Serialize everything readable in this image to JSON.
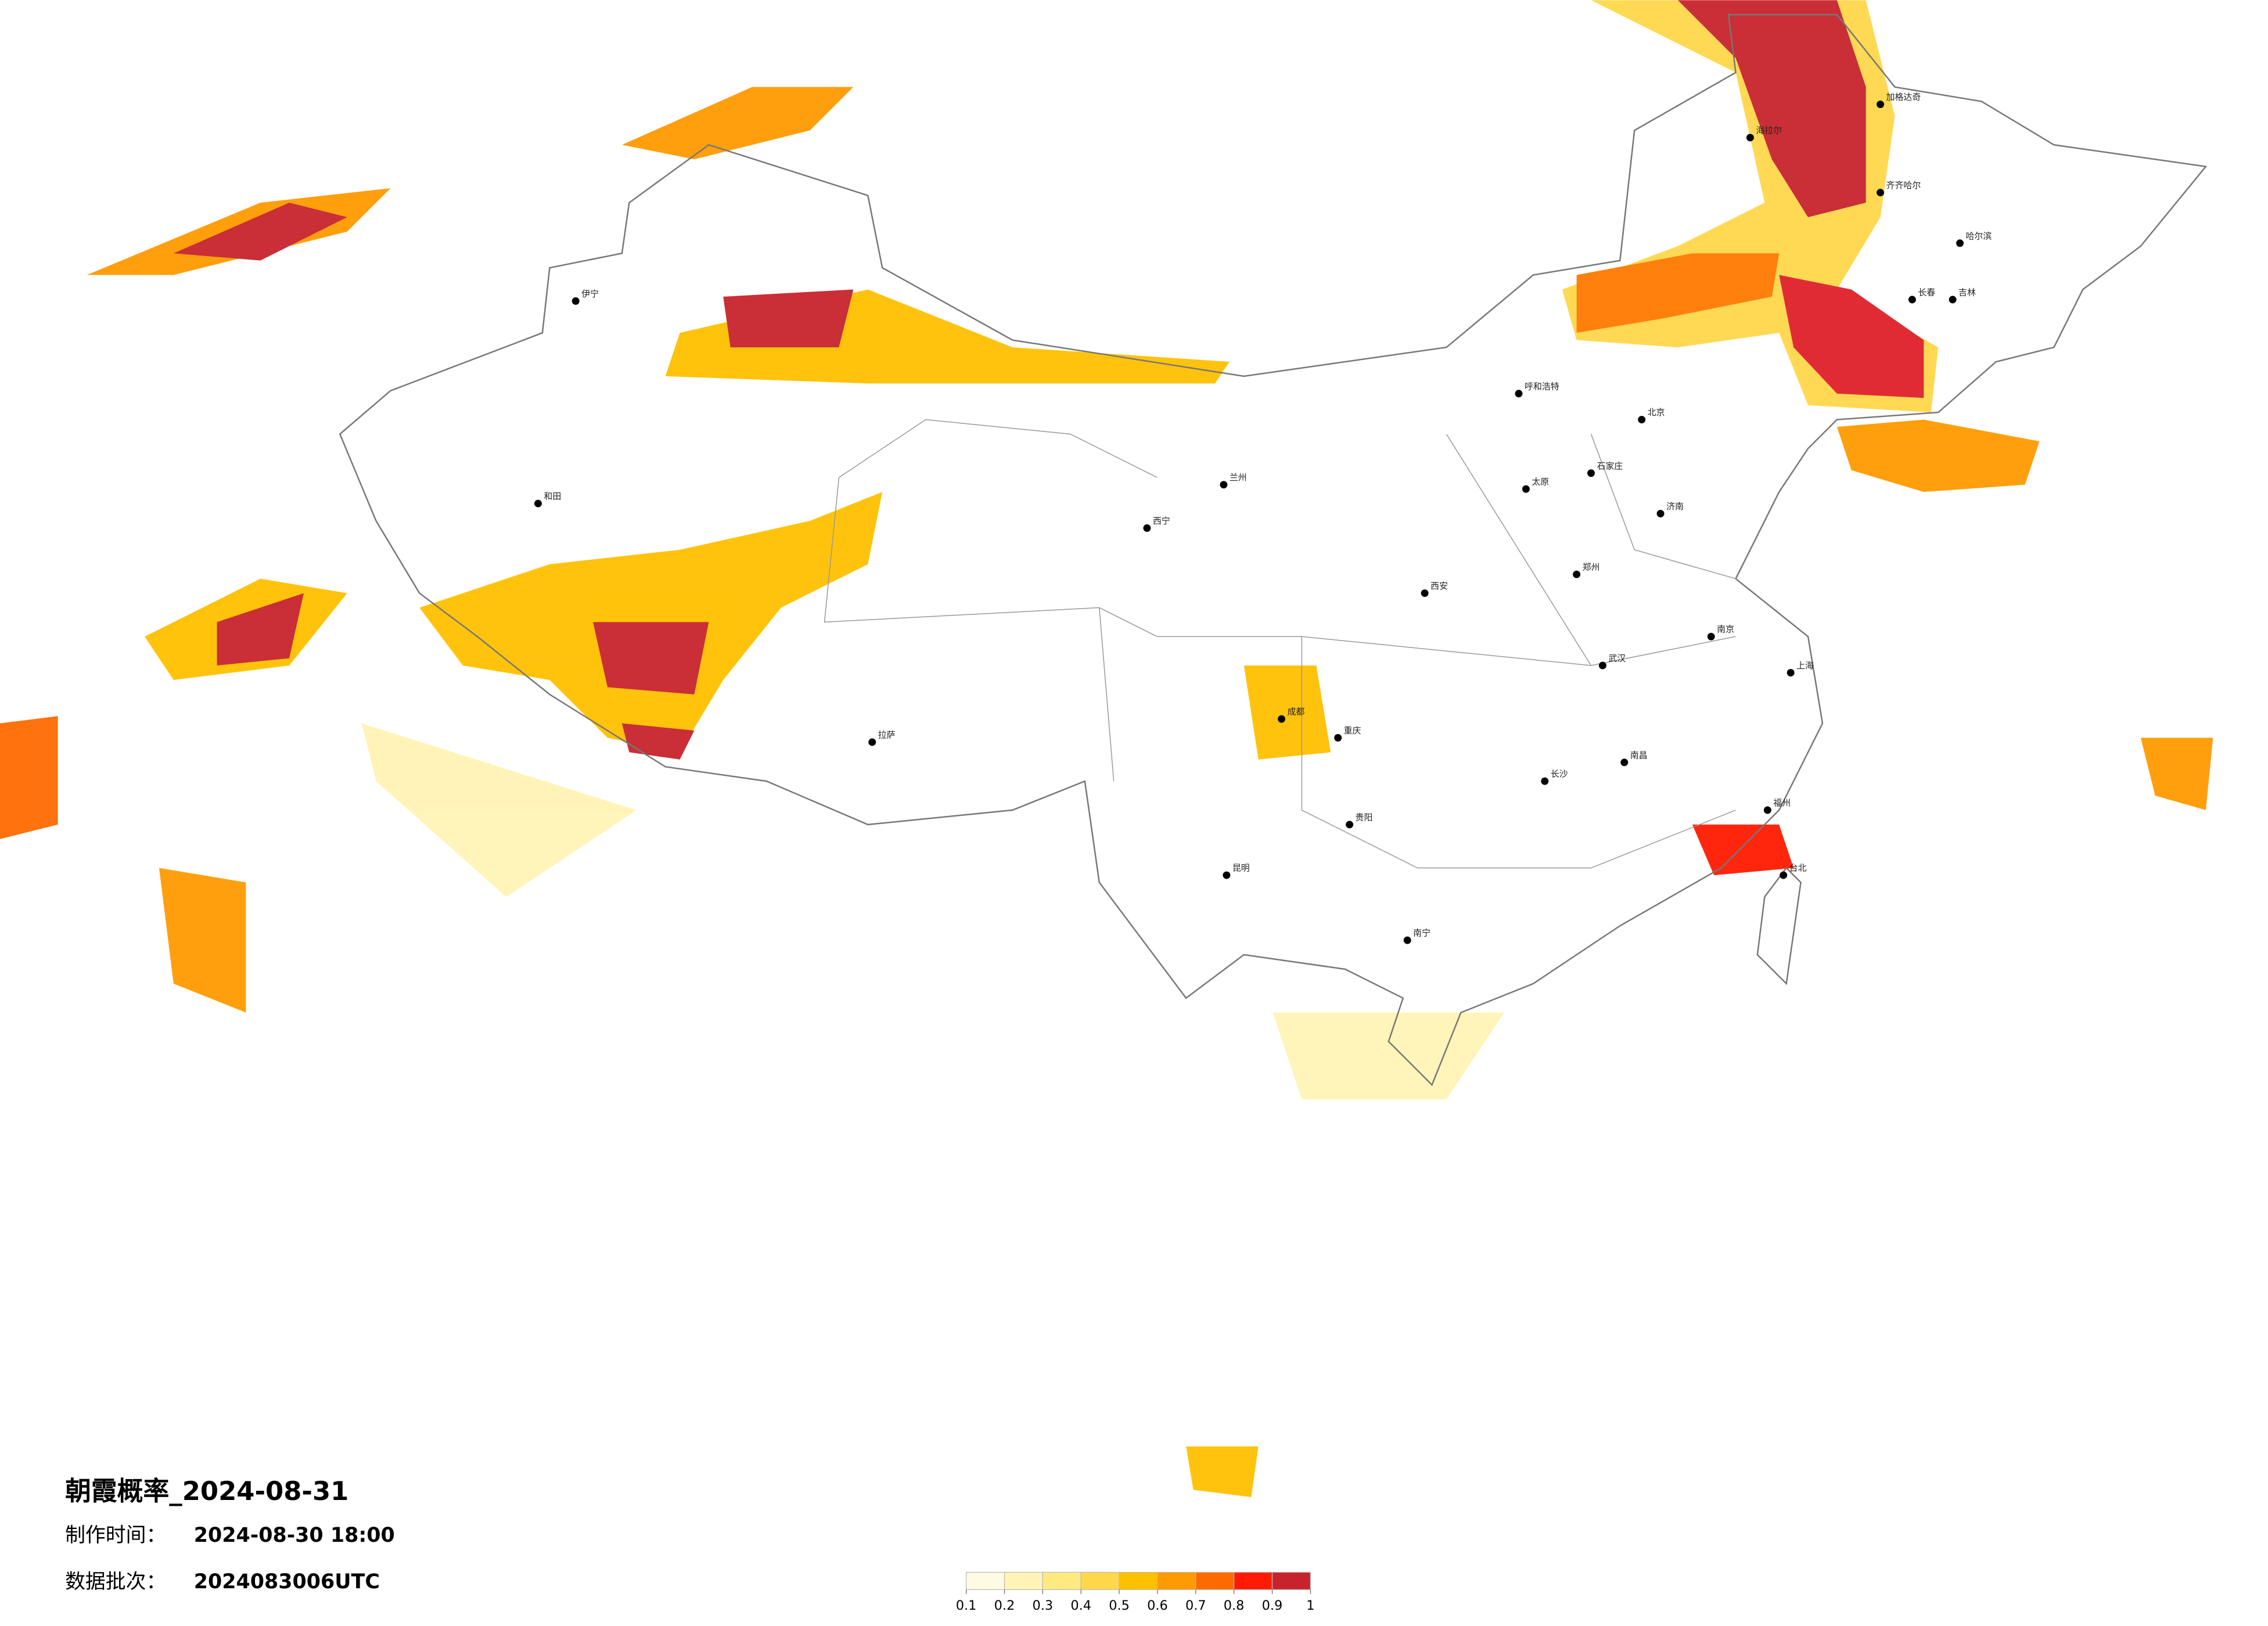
{
  "title": "朝霞概率_2024-08-31",
  "made_label": "制作时间：",
  "made_value": "2024-08-30 18:00",
  "batch_label": "数据批次：",
  "batch_value": "2024083006UTC",
  "colorbar": {
    "ticks": [
      0.1,
      0.2,
      0.3,
      0.4,
      0.5,
      0.6,
      0.7,
      0.8,
      0.9,
      1
    ],
    "colors": [
      "#fffbe3",
      "#fff3b5",
      "#ffea80",
      "#ffd84a",
      "#ffc000",
      "#ff9a00",
      "#ff6a00",
      "#ff1a00",
      "#c8232c"
    ]
  },
  "cities": [
    "加格达奇",
    "海拉尔",
    "齐齐哈尔",
    "哈尔滨",
    "长春",
    "吉林",
    "呼和浩特",
    "北京",
    "石家庄",
    "太原",
    "济南",
    "郑州",
    "西安",
    "兰州",
    "西宁",
    "成都",
    "重庆",
    "武汉",
    "长沙",
    "贵阳",
    "南宁",
    "昆明",
    "拉萨",
    "伊宁",
    "和田",
    "南昌",
    "福州",
    "台北",
    "上海",
    "南京"
  ]
}
